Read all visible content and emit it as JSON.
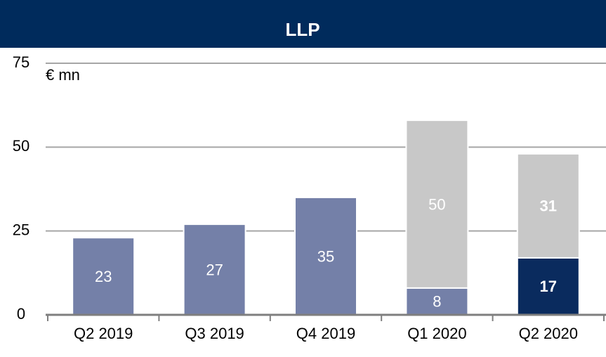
{
  "chart_data": {
    "type": "stacked_bar",
    "title": "LLP",
    "y_unit": "€ mn",
    "categories": [
      "Q2 2019",
      "Q3 2019",
      "Q4 2019",
      "Q1 2020",
      "Q2 2020"
    ],
    "series": [
      {
        "color": "#7480a8",
        "values": [
          23,
          27,
          35,
          8,
          null
        ]
      },
      {
        "color": "#0a2b5e",
        "values": [
          null,
          null,
          null,
          null,
          17
        ],
        "bold": true
      },
      {
        "color": "#c8c8c8",
        "values": [
          null,
          null,
          null,
          50,
          31
        ],
        "bold_points": [
          false,
          false,
          false,
          false,
          true
        ]
      }
    ],
    "ylim": [
      0,
      75
    ],
    "yticks": [
      0,
      25,
      50,
      75
    ],
    "grid": true
  }
}
